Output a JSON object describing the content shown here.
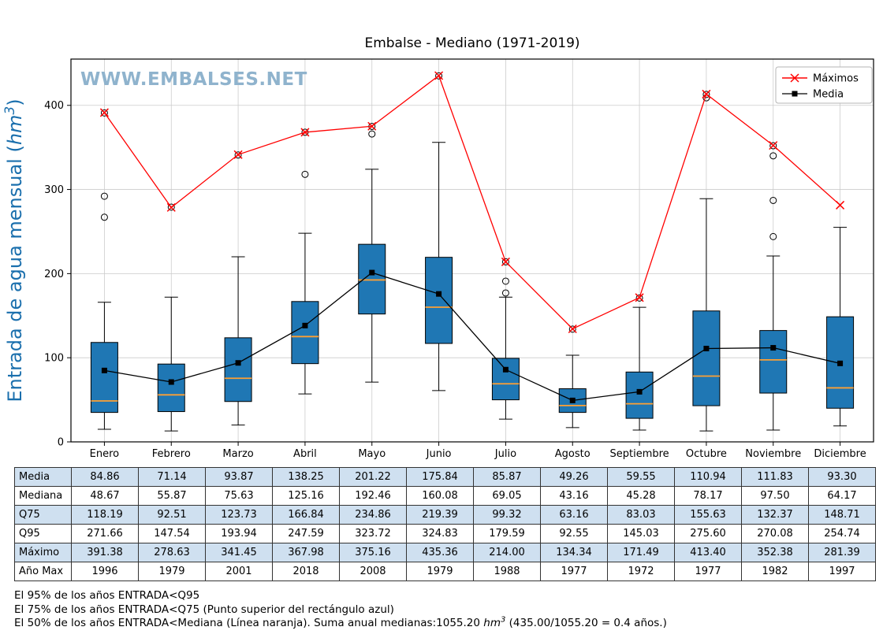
{
  "chart_data": {
    "type": "boxplot",
    "title": "Embalse - Mediano (1971-2019)",
    "watermark": "WWW.EMBALSES.NET",
    "ylabel_parts": [
      "Entrada de agua mensual (",
      "hm",
      "3",
      ")"
    ],
    "ylim": [
      0,
      455
    ],
    "yticks": [
      0,
      100,
      200,
      300,
      400
    ],
    "grid": true,
    "legend_position": "top-right",
    "categories": [
      "Enero",
      "Febrero",
      "Marzo",
      "Abril",
      "Mayo",
      "Junio",
      "Julio",
      "Agosto",
      "Septiembre",
      "Octubre",
      "Noviembre",
      "Diciembre"
    ],
    "legend": [
      {
        "label": "Máximos",
        "color": "#ff0000",
        "marker": "x"
      },
      {
        "label": "Media",
        "color": "#000000",
        "marker": "square"
      }
    ],
    "series": {
      "media": [
        84.86,
        71.14,
        93.87,
        138.25,
        201.22,
        175.84,
        85.87,
        49.26,
        59.55,
        110.94,
        111.83,
        93.3
      ],
      "mediana": [
        48.67,
        55.87,
        75.63,
        125.16,
        192.46,
        160.08,
        69.05,
        43.16,
        45.28,
        78.17,
        97.5,
        64.17
      ],
      "q75": [
        118.19,
        92.51,
        123.73,
        166.84,
        234.86,
        219.39,
        99.32,
        63.16,
        83.03,
        155.63,
        132.37,
        148.71
      ],
      "q95": [
        271.66,
        147.54,
        193.94,
        247.59,
        323.72,
        324.83,
        179.59,
        92.55,
        145.03,
        275.6,
        270.08,
        254.74
      ],
      "maximo": [
        391.38,
        278.63,
        341.45,
        367.98,
        375.16,
        435.36,
        214.0,
        134.34,
        171.49,
        413.4,
        352.38,
        281.39
      ],
      "q25": [
        35,
        36,
        48,
        93,
        152,
        117,
        50,
        35,
        28,
        43,
        58,
        40
      ],
      "whisker_low": [
        15,
        13,
        20,
        57,
        71,
        61,
        27,
        17,
        14,
        13,
        14,
        19
      ],
      "whisker_high": [
        166,
        172,
        220,
        248,
        324,
        356,
        172,
        103,
        160,
        289,
        221,
        255
      ],
      "outliers": [
        [
          267,
          292,
          391
        ],
        [
          279
        ],
        [
          341
        ],
        [
          318,
          368
        ],
        [
          366,
          375
        ],
        [
          435
        ],
        [
          177,
          191,
          214
        ],
        [
          134
        ],
        [
          171
        ],
        [
          409,
          413
        ],
        [
          244,
          287,
          340,
          352
        ],
        []
      ]
    }
  },
  "table": {
    "rows": [
      {
        "label": "Media",
        "values": [
          "84.86",
          "71.14",
          "93.87",
          "138.25",
          "201.22",
          "175.84",
          "85.87",
          "49.26",
          "59.55",
          "110.94",
          "111.83",
          "93.30"
        ]
      },
      {
        "label": "Mediana",
        "values": [
          "48.67",
          "55.87",
          "75.63",
          "125.16",
          "192.46",
          "160.08",
          "69.05",
          "43.16",
          "45.28",
          "78.17",
          "97.50",
          "64.17"
        ]
      },
      {
        "label": "Q75",
        "values": [
          "118.19",
          "92.51",
          "123.73",
          "166.84",
          "234.86",
          "219.39",
          "99.32",
          "63.16",
          "83.03",
          "155.63",
          "132.37",
          "148.71"
        ]
      },
      {
        "label": "Q95",
        "values": [
          "271.66",
          "147.54",
          "193.94",
          "247.59",
          "323.72",
          "324.83",
          "179.59",
          "92.55",
          "145.03",
          "275.60",
          "270.08",
          "254.74"
        ]
      },
      {
        "label": "Máximo",
        "values": [
          "391.38",
          "278.63",
          "341.45",
          "367.98",
          "375.16",
          "435.36",
          "214.00",
          "134.34",
          "171.49",
          "413.40",
          "352.38",
          "281.39"
        ]
      },
      {
        "label": "Año Max",
        "values": [
          "1996",
          "1979",
          "2001",
          "2018",
          "2008",
          "1979",
          "1988",
          "1977",
          "1972",
          "1977",
          "1982",
          "1997"
        ]
      }
    ]
  },
  "footer": {
    "line1": "El 95% de los años ENTRADA<Q95",
    "line2": "El 75% de los años ENTRADA<Q75 (Punto superior del rectángulo azul)",
    "line3_prefix": "El 50% de los años ENTRADA<Mediana (Línea naranja). Suma anual medianas:1055.20 ",
    "line3_unit": "hm",
    "line3_sup": "3",
    "line3_suffix": " (435.00/1055.20 = 0.4 años.)"
  },
  "colors": {
    "box_fill": "#1f77b4",
    "median_line": "#ffa033",
    "max_line": "#ff0000",
    "media_line": "#000000",
    "watermark": "#8fb3cd",
    "ylabel": "#1a6fad",
    "grid": "#cccccc",
    "table_row_alt": "#cfe0f0"
  }
}
